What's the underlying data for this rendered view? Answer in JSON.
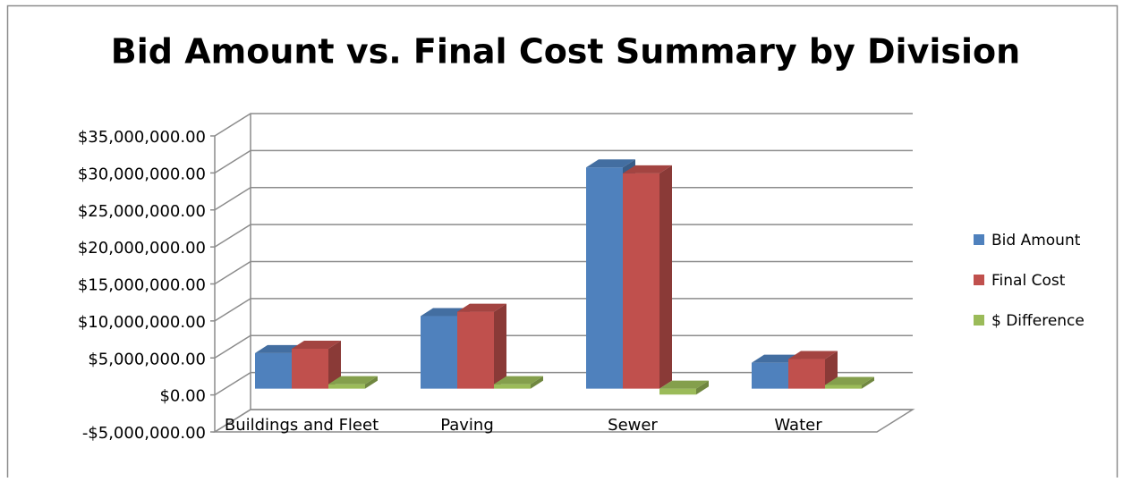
{
  "chart_data": {
    "type": "bar3d",
    "title": "Bid Amount vs. Final Cost Summary by Division",
    "categories": [
      "Buildings and Fleet",
      "Paving",
      "Sewer",
      "Water"
    ],
    "series": [
      {
        "name": "Bid Amount",
        "color": "#4f81bd",
        "values": [
          4800000,
          9800000,
          29900000,
          3500000
        ]
      },
      {
        "name": "Final Cost",
        "color": "#c0504d",
        "values": [
          5400000,
          10400000,
          29100000,
          4000000
        ]
      },
      {
        "name": "$ Difference",
        "color": "#9bbb59",
        "values": [
          600000,
          600000,
          -800000,
          500000
        ]
      }
    ],
    "ylim": [
      -5000000,
      35000000
    ],
    "yticks": [
      {
        "value": -5000000,
        "label": "-$5,000,000.00"
      },
      {
        "value": 0,
        "label": "$0.00"
      },
      {
        "value": 5000000,
        "label": "$5,000,000.00"
      },
      {
        "value": 10000000,
        "label": "$10,000,000.00"
      },
      {
        "value": 15000000,
        "label": "$15,000,000.00"
      },
      {
        "value": 20000000,
        "label": "$20,000,000.00"
      },
      {
        "value": 25000000,
        "label": "$25,000,000.00"
      },
      {
        "value": 30000000,
        "label": "$30,000,000.00"
      },
      {
        "value": 35000000,
        "label": "$35,000,000.00"
      }
    ],
    "grid": true,
    "legend": "right"
  }
}
